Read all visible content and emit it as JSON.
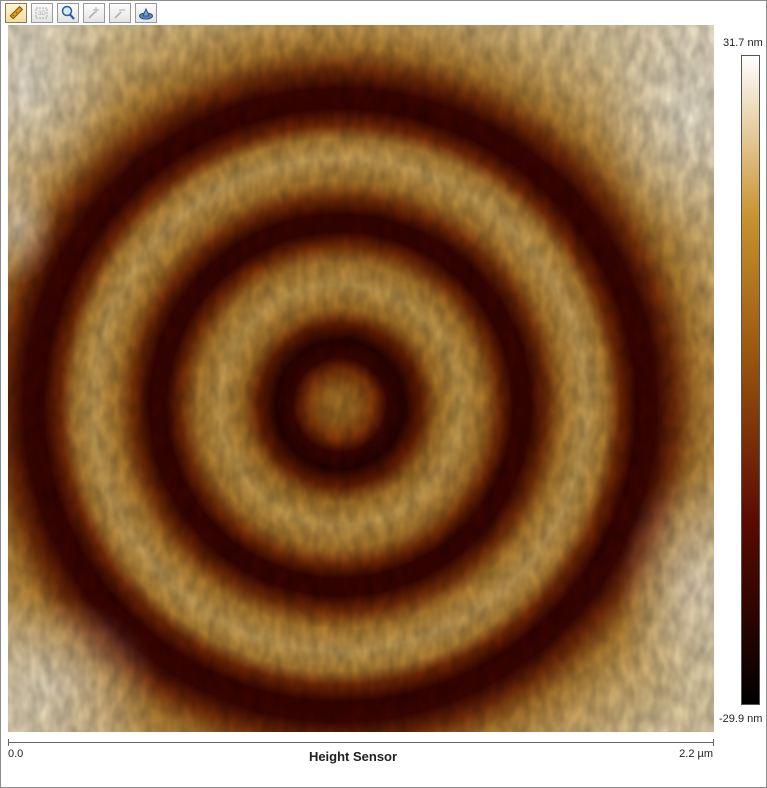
{
  "toolbar": {
    "tools": [
      {
        "name": "measure-ruler-icon",
        "state": "active"
      },
      {
        "name": "zoom-region-icon",
        "state": "disabled"
      },
      {
        "name": "magnifier-icon",
        "state": "enabled"
      },
      {
        "name": "zoom-in-icon",
        "state": "disabled"
      },
      {
        "name": "zoom-out-icon",
        "state": "disabled"
      },
      {
        "name": "3d-view-icon",
        "state": "enabled"
      }
    ]
  },
  "image": {
    "description_colors": {
      "low": "#000000",
      "mid_low": "#5a0a00",
      "mid": "#9b5a10",
      "mid_high": "#c8922e",
      "high": "#ffffff"
    }
  },
  "color_scale": {
    "max_label": "31.7 nm",
    "min_label": "-29.9 nm"
  },
  "x_axis": {
    "min_label": "0.0",
    "max_label": "2.2 µm"
  },
  "channel": {
    "title": "Height Sensor"
  }
}
